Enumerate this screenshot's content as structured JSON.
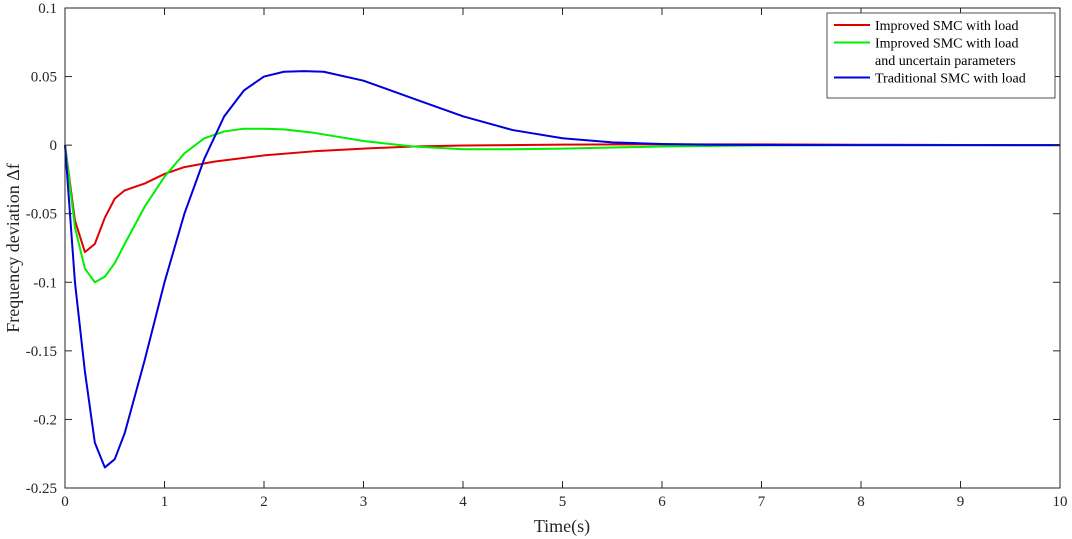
{
  "chart_data": {
    "type": "line",
    "title": "",
    "xlabel": "Time(s)",
    "ylabel": "Frequency deviation Δf",
    "xlim": [
      0,
      10
    ],
    "ylim": [
      -0.25,
      0.1
    ],
    "x_ticks": [
      0,
      1,
      2,
      3,
      4,
      5,
      6,
      7,
      8,
      9,
      10
    ],
    "x_tick_labels": [
      "0",
      "1",
      "2",
      "3",
      "4",
      "5",
      "6",
      "7",
      "8",
      "9",
      "10"
    ],
    "y_ticks": [
      0.1,
      0.05,
      0,
      -0.05,
      -0.1,
      -0.15,
      -0.2,
      -0.25
    ],
    "y_tick_labels": [
      "0.1",
      "0.05",
      "0",
      "-0.05",
      "-0.1",
      "-0.15",
      "-0.2",
      "-0.25"
    ],
    "grid": false,
    "legend_position": "top-right",
    "series": [
      {
        "name": "Improved SMC with load",
        "legend_lines": [
          "Improved SMC with load"
        ],
        "color": "#e00000",
        "x": [
          0,
          0.1,
          0.2,
          0.3,
          0.4,
          0.5,
          0.6,
          0.8,
          1.0,
          1.2,
          1.5,
          2.0,
          2.5,
          3.0,
          3.5,
          4.0,
          5.0,
          6.0,
          7.0,
          8.0,
          9.0,
          10.0
        ],
        "y": [
          0,
          -0.055,
          -0.078,
          -0.072,
          -0.053,
          -0.039,
          -0.033,
          -0.028,
          -0.021,
          -0.016,
          -0.012,
          -0.0075,
          -0.0045,
          -0.0025,
          -0.001,
          -0.0003,
          0.0004,
          0.0006,
          0.0006,
          0.0003,
          0.0001,
          0
        ]
      },
      {
        "name": "Improved SMC with load and uncertain parameters",
        "legend_lines": [
          "Improved SMC with load",
          "and uncertain parameters"
        ],
        "color": "#00ee00",
        "x": [
          0,
          0.1,
          0.2,
          0.3,
          0.4,
          0.5,
          0.6,
          0.8,
          1.0,
          1.2,
          1.4,
          1.6,
          1.8,
          2.0,
          2.2,
          2.5,
          3.0,
          3.5,
          4.0,
          4.5,
          5.0,
          6.0,
          7.0,
          8.0,
          9.0,
          10.0
        ],
        "y": [
          0,
          -0.06,
          -0.09,
          -0.1,
          -0.096,
          -0.086,
          -0.072,
          -0.045,
          -0.023,
          -0.006,
          0.005,
          0.01,
          0.012,
          0.012,
          0.0115,
          0.009,
          0.003,
          -0.001,
          -0.003,
          -0.003,
          -0.0025,
          -0.001,
          -0.0002,
          0,
          0,
          0
        ]
      },
      {
        "name": "Traditional SMC with load",
        "legend_lines": [
          "Traditional SMC with load"
        ],
        "color": "#0000dd",
        "x": [
          0,
          0.1,
          0.2,
          0.3,
          0.4,
          0.5,
          0.6,
          0.8,
          1.0,
          1.2,
          1.4,
          1.6,
          1.8,
          2.0,
          2.2,
          2.4,
          2.6,
          3.0,
          3.5,
          4.0,
          4.5,
          5.0,
          5.5,
          6.0,
          6.5,
          7.0,
          8.0,
          9.0,
          10.0
        ],
        "y": [
          0,
          -0.1,
          -0.165,
          -0.217,
          -0.235,
          -0.229,
          -0.21,
          -0.157,
          -0.1,
          -0.05,
          -0.01,
          0.021,
          0.04,
          0.05,
          0.0535,
          0.054,
          0.0535,
          0.047,
          0.034,
          0.021,
          0.011,
          0.005,
          0.002,
          0.0008,
          0.0003,
          0.0001,
          0,
          0,
          0
        ]
      }
    ]
  }
}
